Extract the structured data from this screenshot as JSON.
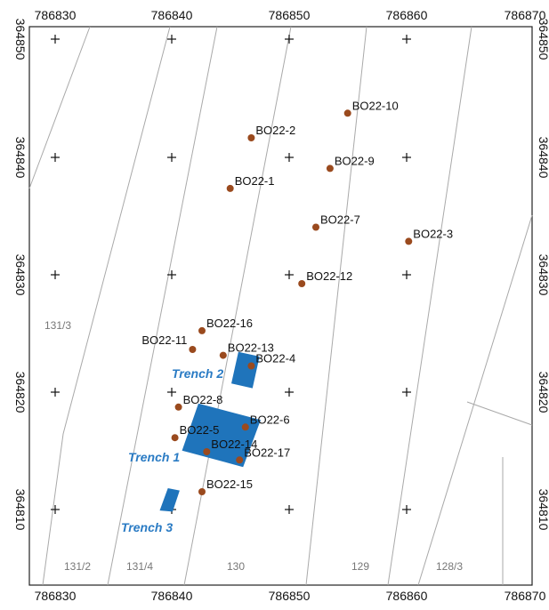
{
  "x_ticks": [
    {
      "value": 786830,
      "label": "786830"
    },
    {
      "value": 786840,
      "label": "786840"
    },
    {
      "value": 786850,
      "label": "786850"
    },
    {
      "value": 786860,
      "label": "786860"
    },
    {
      "value": 786870,
      "label": "786870"
    }
  ],
  "y_ticks": [
    {
      "value": 364850,
      "label": "364850"
    },
    {
      "value": 364840,
      "label": "364840"
    },
    {
      "value": 364830,
      "label": "364830"
    },
    {
      "value": 364820,
      "label": "364820"
    },
    {
      "value": 364810,
      "label": "364810"
    }
  ],
  "boreholes": [
    {
      "id": "BO22-10",
      "x": 786854.9,
      "y": 364843.7
    },
    {
      "id": "BO22-2",
      "x": 786846.7,
      "y": 364841.6
    },
    {
      "id": "BO22-9",
      "x": 786853.4,
      "y": 364839.0
    },
    {
      "id": "BO22-1",
      "x": 786844.9,
      "y": 364837.3
    },
    {
      "id": "BO22-7",
      "x": 786852.2,
      "y": 364834.0
    },
    {
      "id": "BO22-3",
      "x": 786860.1,
      "y": 364832.8
    },
    {
      "id": "BO22-12",
      "x": 786851.0,
      "y": 364829.2
    },
    {
      "id": "BO22-16",
      "x": 786842.5,
      "y": 364825.2
    },
    {
      "id": "BO22-11",
      "x": 786841.7,
      "y": 364823.6
    },
    {
      "id": "BO22-13",
      "x": 786844.3,
      "y": 364823.1
    },
    {
      "id": "BO22-4",
      "x": 786846.7,
      "y": 364822.2
    },
    {
      "id": "BO22-8",
      "x": 786840.5,
      "y": 364818.7
    },
    {
      "id": "BO22-6",
      "x": 786846.2,
      "y": 364817.0
    },
    {
      "id": "BO22-5",
      "x": 786840.2,
      "y": 364816.1
    },
    {
      "id": "BO22-14",
      "x": 786842.9,
      "y": 364814.9
    },
    {
      "id": "BO22-17",
      "x": 786845.7,
      "y": 364814.2
    },
    {
      "id": "BO22-15",
      "x": 786842.5,
      "y": 364811.5
    }
  ],
  "trenches": [
    {
      "name": "Trench 1",
      "corners": [
        [
          786842.2,
          364819.0
        ],
        [
          786847.5,
          364817.6
        ],
        [
          786846.0,
          364813.6
        ],
        [
          786840.8,
          364815.0
        ]
      ]
    },
    {
      "name": "Trench 2",
      "corners": [
        [
          786845.6,
          364823.4
        ],
        [
          786847.4,
          364823.0
        ],
        [
          786846.8,
          364820.3
        ],
        [
          786845.0,
          364820.7
        ]
      ]
    },
    {
      "name": "Trench 3",
      "corners": [
        [
          786839.6,
          364811.8
        ],
        [
          786840.6,
          364811.6
        ],
        [
          786840.0,
          364809.8
        ],
        [
          786838.9,
          364809.9
        ]
      ]
    }
  ],
  "parcels": [
    "131/3",
    "131/2",
    "131/4",
    "130",
    "129",
    "128/3"
  ],
  "colors": {
    "borehole": "#9a4a1e",
    "trench_fill": "#1f74bb",
    "trench_label": "#2a7bc4",
    "parcel_line": "#a9a9a9"
  }
}
